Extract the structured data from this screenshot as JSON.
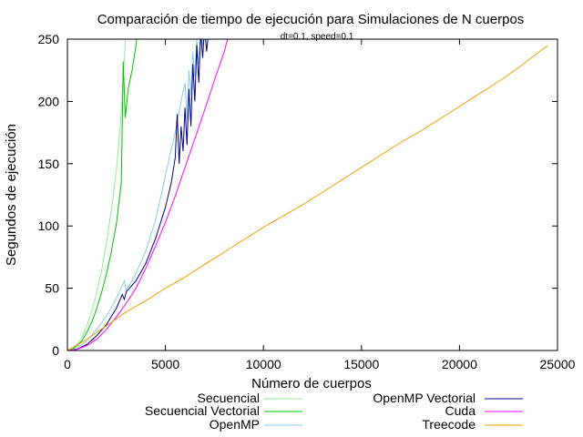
{
  "chart_data": {
    "type": "line",
    "title": "Comparación de tiempo de ejecución para Simulaciones de N cuerpos",
    "subtitle": "dt=0.1, speed=0.1",
    "xlabel": "Número de cuerpos",
    "ylabel": "Segundos de ejecución",
    "xlim": [
      0,
      25000
    ],
    "ylim": [
      0,
      250
    ],
    "xticks": [
      0,
      5000,
      10000,
      15000,
      20000,
      25000
    ],
    "yticks": [
      0,
      50,
      100,
      150,
      200,
      250
    ],
    "grid": false,
    "legend_position": "bottom-center",
    "series": [
      {
        "name": "Secuencial",
        "color": "#90ee90",
        "x": [
          0,
          250,
          500,
          750,
          1000,
          1250,
          1500,
          1750,
          2000,
          2250,
          2500,
          2700,
          2850,
          3000
        ],
        "y": [
          0,
          1.5,
          5,
          11,
          20,
          32,
          47,
          65,
          87,
          113,
          145,
          180,
          220,
          260
        ]
      },
      {
        "name": "Secuencial Vectorial",
        "color": "#00c000",
        "x": [
          0,
          250,
          500,
          750,
          1000,
          1250,
          1500,
          1750,
          2000,
          2250,
          2500,
          2750,
          2850,
          2950,
          3100,
          3300,
          3500,
          3600
        ],
        "y": [
          0,
          1,
          4,
          8,
          15,
          23,
          34,
          47,
          62,
          80,
          102,
          135,
          232,
          187,
          210,
          225,
          245,
          260
        ]
      },
      {
        "name": "OpenMP",
        "color": "#87ceeb",
        "x": [
          0,
          500,
          1000,
          1500,
          2000,
          2500,
          2800,
          2900,
          3000,
          3500,
          4000,
          4500,
          5000,
          5200,
          5500,
          5800,
          6000,
          6100,
          6200,
          6300,
          6400,
          6500,
          6600,
          6700,
          6800,
          6900,
          7000
        ],
        "y": [
          0,
          2,
          8,
          17,
          28,
          42,
          52,
          56,
          48,
          62,
          80,
          105,
          140,
          155,
          175,
          200,
          215,
          185,
          225,
          205,
          240,
          220,
          250,
          230,
          255,
          245,
          260
        ]
      },
      {
        "name": "OpenMP Vectorial",
        "color": "#00008b",
        "x": [
          0,
          500,
          1000,
          1500,
          2000,
          2500,
          2800,
          2900,
          3000,
          3500,
          4000,
          4500,
          5000,
          5300,
          5500,
          5600,
          5700,
          5800,
          5900,
          6000,
          6100,
          6200,
          6300,
          6400,
          6500,
          6600,
          6700,
          6800,
          6900,
          7000,
          7100,
          7200
        ],
        "y": [
          0,
          1,
          5,
          12,
          21,
          34,
          45,
          41,
          47,
          56,
          70,
          90,
          115,
          135,
          155,
          190,
          150,
          180,
          160,
          195,
          165,
          210,
          180,
          230,
          200,
          245,
          215,
          255,
          235,
          260,
          240,
          255
        ]
      },
      {
        "name": "Cuda",
        "color": "#ff00ff",
        "x": [
          0,
          500,
          1000,
          1500,
          2000,
          2500,
          3000,
          3500,
          4000,
          4500,
          5000,
          5500,
          6000,
          6500,
          7000,
          7500,
          8000,
          8200
        ],
        "y": [
          0,
          1,
          4,
          9,
          17,
          27,
          38,
          50,
          66,
          84,
          103,
          124,
          147,
          170,
          193,
          217,
          240,
          252
        ]
      },
      {
        "name": "Treecode",
        "color": "#f0a000",
        "x": [
          0,
          1000,
          2000,
          3000,
          4000,
          5000,
          6000,
          7000,
          8000,
          9000,
          10000,
          11000,
          12000,
          13000,
          14000,
          15000,
          16000,
          17000,
          18000,
          19000,
          20000,
          21000,
          22000,
          23000,
          24000,
          24500
        ],
        "y": [
          0,
          9,
          20,
          31,
          40,
          50,
          59,
          69,
          79,
          89,
          99,
          108,
          117,
          127,
          137,
          147,
          157,
          167,
          176,
          186,
          196,
          206,
          216,
          227,
          239,
          245
        ]
      }
    ]
  }
}
